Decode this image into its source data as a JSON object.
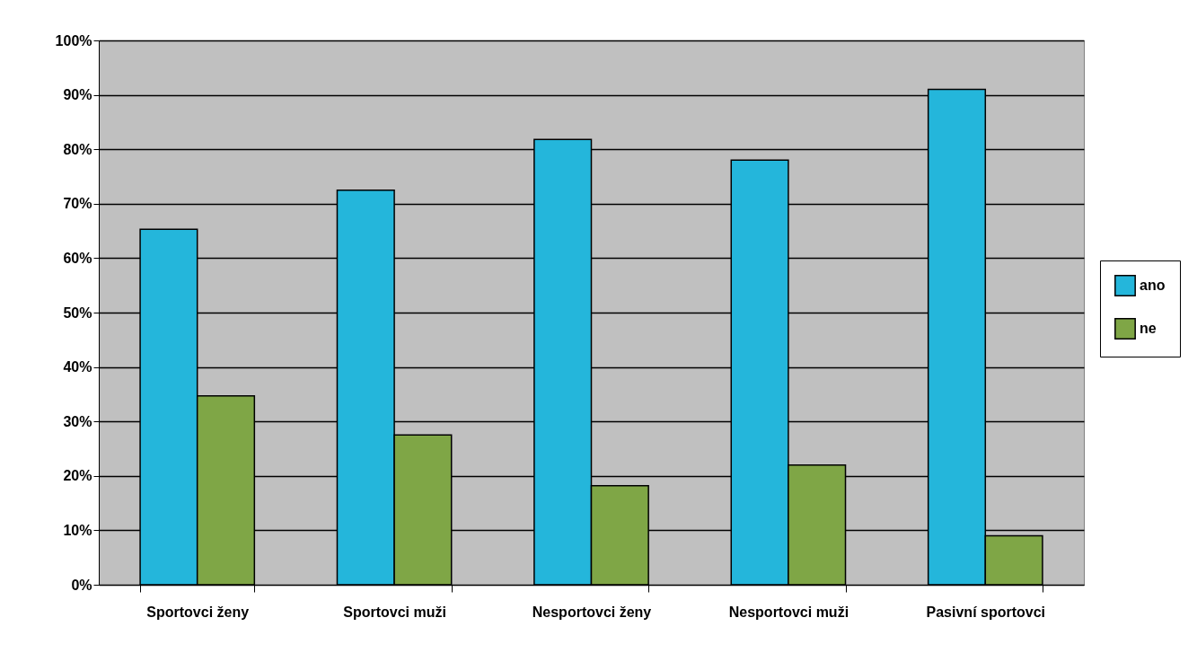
{
  "chart_data": {
    "type": "bar",
    "categories": [
      "Sportovci ženy",
      "Sportovci muži",
      "Nesportovci ženy",
      "Nesportovci muži",
      "Pasivní sportovci"
    ],
    "series": [
      {
        "name": "ano",
        "color": "#24b6db",
        "values": [
          65.3,
          72.5,
          81.8,
          78,
          91
        ]
      },
      {
        "name": "ne",
        "color": "#7fa646",
        "values": [
          34.7,
          27.5,
          18.2,
          22,
          9
        ]
      }
    ],
    "ylim": [
      0,
      100
    ],
    "yticks": [
      {
        "value": 0,
        "label": "0%"
      },
      {
        "value": 10,
        "label": "10%"
      },
      {
        "value": 20,
        "label": "20%"
      },
      {
        "value": 30,
        "label": "30%"
      },
      {
        "value": 40,
        "label": "40%"
      },
      {
        "value": 50,
        "label": "50%"
      },
      {
        "value": 60,
        "label": "60%"
      },
      {
        "value": 70,
        "label": "70%"
      },
      {
        "value": 80,
        "label": "80%"
      },
      {
        "value": 90,
        "label": "90%"
      },
      {
        "value": 100,
        "label": "100%"
      }
    ],
    "grid": "y",
    "legend": "right"
  }
}
